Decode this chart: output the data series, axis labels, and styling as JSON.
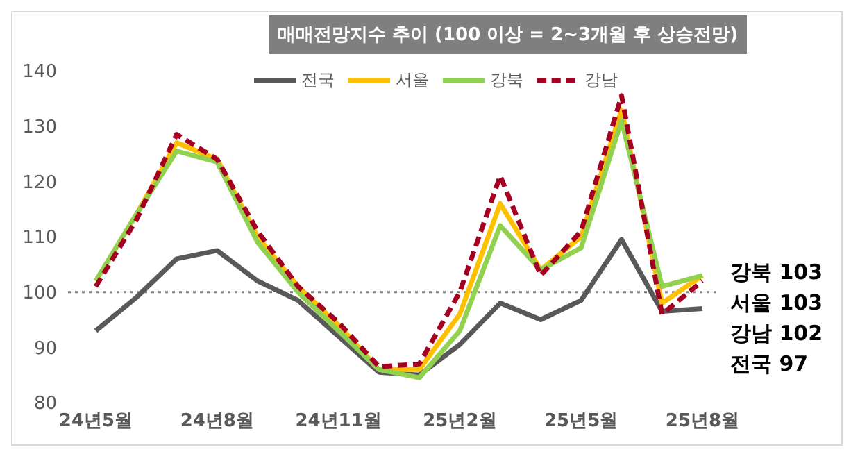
{
  "chart_data": {
    "type": "line",
    "title": "매매전망지수 추이 (100 이상 = 2~3개월 후 상승전망)",
    "categories": [
      "24년5월",
      null,
      null,
      "24년8월",
      null,
      null,
      "24년11월",
      null,
      null,
      "25년2월",
      null,
      null,
      "25년5월",
      null,
      null,
      "25년8월"
    ],
    "series": [
      {
        "name": "전국",
        "color": "#595959",
        "values": [
          93,
          99,
          106,
          107.5,
          102,
          98.5,
          92,
          85.5,
          85,
          90.5,
          98,
          95,
          98.5,
          109.5,
          96.5,
          97
        ]
      },
      {
        "name": "서울",
        "color": "#ffc000",
        "values": [
          102,
          114,
          127,
          124,
          110,
          101,
          94,
          86,
          86,
          96,
          116,
          104,
          110,
          133,
          98,
          103
        ]
      },
      {
        "name": "강북",
        "color": "#92d050",
        "values": [
          102,
          114,
          125.5,
          123.5,
          109,
          100,
          93,
          86,
          84.5,
          93,
          112,
          104,
          108,
          131,
          101,
          103
        ]
      },
      {
        "name": "강남",
        "color": "#a50021",
        "line_style": "dashed",
        "values": [
          101,
          113,
          128.5,
          124,
          111,
          101,
          94.5,
          86.5,
          87,
          100,
          121,
          103,
          111,
          135.5,
          96,
          102
        ]
      }
    ],
    "ylim": [
      80,
      140
    ],
    "yticks": [
      80,
      90,
      100,
      110,
      120,
      130,
      140
    ],
    "grid": false,
    "legend": "top",
    "marker": "none",
    "line_style": "solid",
    "ref_lines": [
      {
        "axis": "y",
        "value": 100,
        "color": "#808080",
        "line_style": "dotted"
      }
    ],
    "annotations": [
      {
        "text": "강북 103",
        "x": "25년8월",
        "y": 103
      },
      {
        "text": "서울 103",
        "x": "25년8월",
        "y": 103
      },
      {
        "text": "강남 102",
        "x": "25년8월",
        "y": 102
      },
      {
        "text": "전국 97",
        "x": "25년8월",
        "y": 97
      }
    ]
  }
}
